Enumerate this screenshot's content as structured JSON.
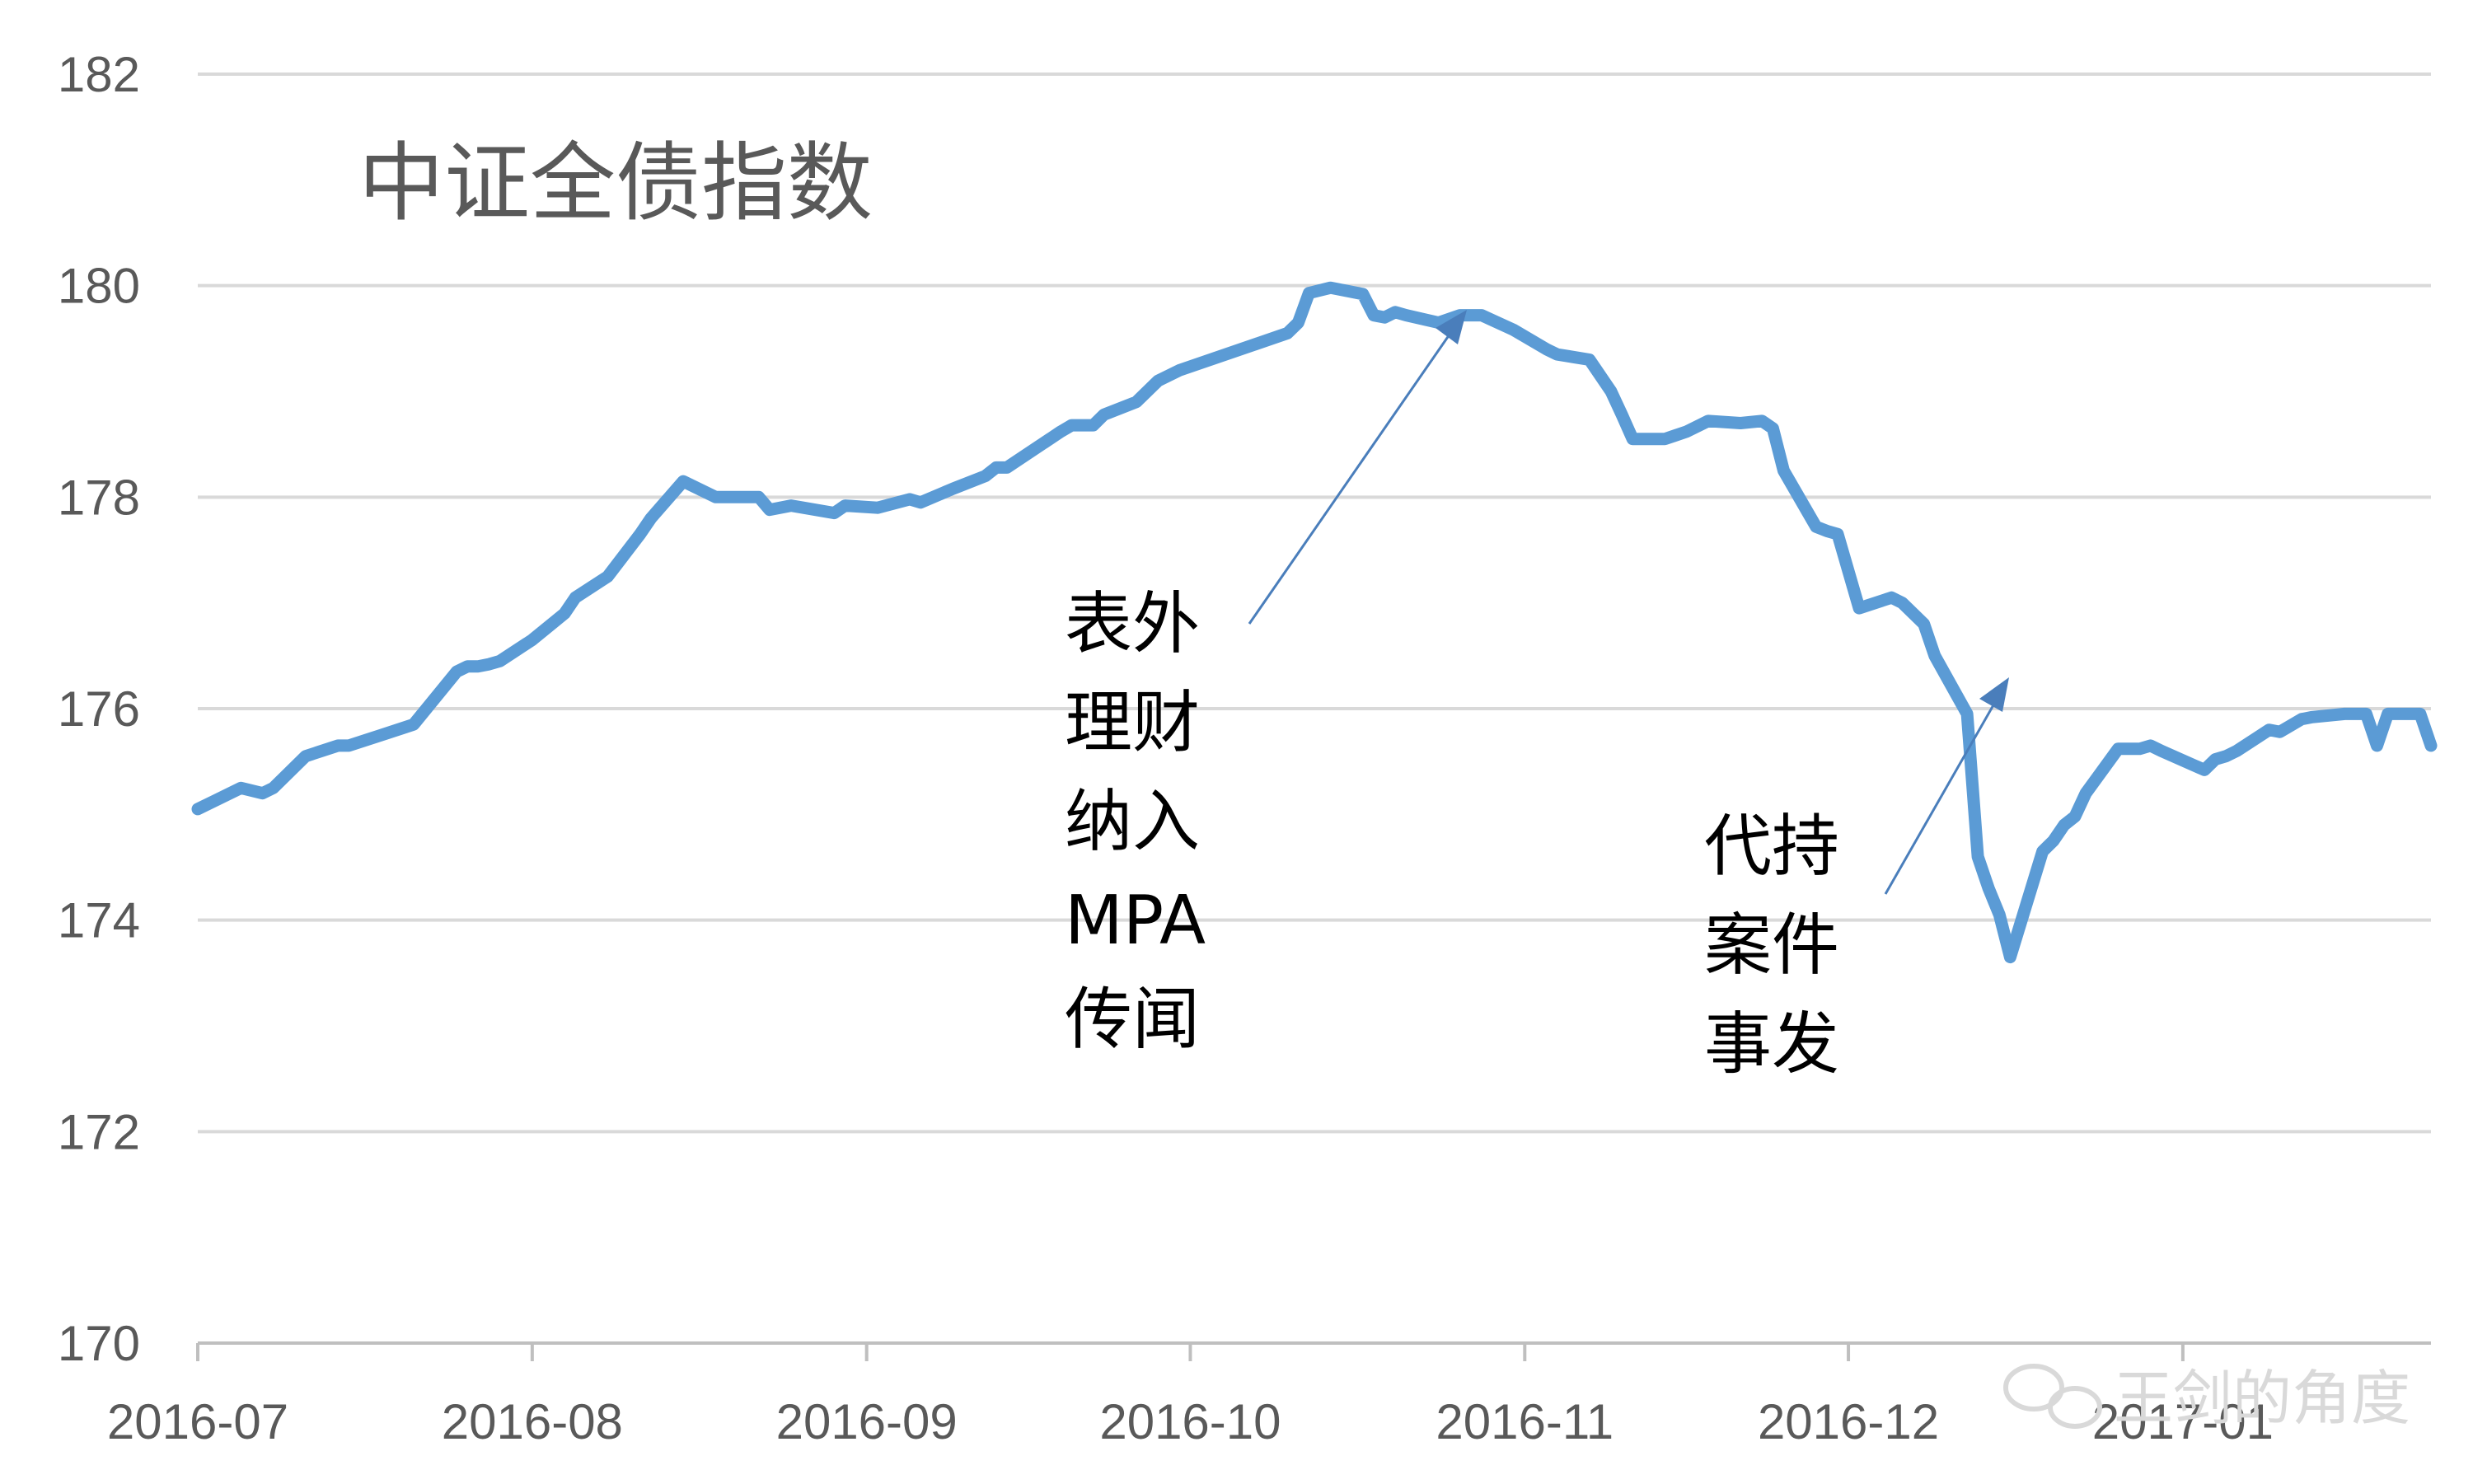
{
  "chart_data": {
    "type": "line",
    "title": "中证全债指数",
    "xlabel": "",
    "ylabel": "",
    "ylim": [
      170,
      182
    ],
    "yticks": [
      170,
      172,
      174,
      176,
      178,
      180,
      182
    ],
    "x_tick_labels": [
      "2016-07",
      "2016-08",
      "2016-09",
      "2016-10",
      "2016-11",
      "2016-12",
      "2017-01"
    ],
    "grid": true,
    "legend": "none",
    "line_color": "#5b9bd5",
    "series": [
      {
        "name": "",
        "x": [
          "2016-07-01",
          "2016-07-05",
          "2016-07-07",
          "2016-07-08",
          "2016-07-11",
          "2016-07-14",
          "2016-07-15",
          "2016-07-18",
          "2016-07-21",
          "2016-07-25",
          "2016-07-26",
          "2016-07-27",
          "2016-07-28",
          "2016-07-29",
          "2016-08-01",
          "2016-08-04",
          "2016-08-05",
          "2016-08-08",
          "2016-08-11",
          "2016-08-12",
          "2016-08-15",
          "2016-08-18",
          "2016-08-19",
          "2016-08-22",
          "2016-08-23",
          "2016-08-25",
          "2016-08-29",
          "2016-08-30",
          "2016-09-02",
          "2016-09-05",
          "2016-09-06",
          "2016-09-09",
          "2016-09-12",
          "2016-09-13",
          "2016-09-14",
          "2016-09-19",
          "2016-09-20",
          "2016-09-22",
          "2016-09-23",
          "2016-09-26",
          "2016-09-27",
          "2016-09-28",
          "2016-09-30",
          "2016-10-10",
          "2016-10-11",
          "2016-10-12",
          "2016-10-14",
          "2016-10-17",
          "2016-10-18",
          "2016-10-19",
          "2016-10-20",
          "2016-10-21",
          "2016-10-24",
          "2016-10-26",
          "2016-10-28",
          "2016-10-31",
          "2016-11-03",
          "2016-11-04",
          "2016-11-07",
          "2016-11-09",
          "2016-11-10",
          "2016-11-11",
          "2016-11-14",
          "2016-11-16",
          "2016-11-18",
          "2016-11-21",
          "2016-11-23",
          "2016-11-24",
          "2016-11-25",
          "2016-11-28",
          "2016-11-29",
          "2016-11-30",
          "2016-12-02",
          "2016-12-05",
          "2016-12-06",
          "2016-12-07",
          "2016-12-08",
          "2016-12-09",
          "2016-12-12",
          "2016-12-13",
          "2016-12-14",
          "2016-12-15",
          "2016-12-16",
          "2016-12-19",
          "2016-12-20",
          "2016-12-21",
          "2016-12-22",
          "2016-12-23",
          "2016-12-26",
          "2016-12-27",
          "2016-12-28",
          "2016-12-29",
          "2016-12-30",
          "2017-01-03",
          "2017-01-04",
          "2017-01-05",
          "2017-01-06",
          "2017-01-09",
          "2017-01-10",
          "2017-01-12",
          "2017-01-13",
          "2017-01-16",
          "2017-01-18",
          "2017-01-19",
          "2017-01-20",
          "2017-01-23",
          "2017-01-24"
        ],
        "values": [
          175.05,
          175.25,
          175.2,
          175.25,
          175.55,
          175.65,
          175.65,
          175.75,
          175.85,
          176.35,
          176.4,
          176.4,
          176.42,
          176.45,
          176.65,
          176.9,
          177.05,
          177.25,
          177.65,
          177.8,
          178.15,
          178.0,
          178.0,
          178.0,
          177.88,
          177.92,
          177.85,
          177.92,
          177.9,
          177.98,
          177.95,
          178.08,
          178.2,
          178.28,
          178.28,
          178.62,
          178.68,
          178.68,
          178.78,
          178.9,
          179.0,
          179.1,
          179.2,
          179.55,
          179.65,
          179.93,
          179.98,
          179.92,
          179.72,
          179.7,
          179.75,
          179.72,
          179.65,
          179.72,
          179.72,
          179.58,
          179.4,
          179.35,
          179.3,
          179.0,
          178.78,
          178.55,
          178.55,
          178.62,
          178.72,
          178.7,
          178.72,
          178.65,
          178.25,
          177.72,
          177.68,
          177.65,
          176.95,
          177.05,
          177.0,
          176.9,
          176.8,
          176.5,
          175.95,
          174.6,
          174.3,
          174.05,
          173.65,
          174.65,
          174.75,
          174.9,
          174.98,
          175.2,
          175.62,
          175.62,
          175.62,
          175.65,
          175.6,
          175.42,
          175.52,
          175.55,
          175.6,
          175.8,
          175.78,
          175.9,
          175.92,
          175.95,
          175.95,
          175.65,
          175.95,
          175.95,
          175.65
        ]
      }
    ],
    "annotations": [
      {
        "lines": [
          "表外",
          "理财",
          "纳入",
          "MPA",
          "传闻"
        ],
        "points_to": "2016-10-17"
      },
      {
        "lines": [
          "代持",
          "案件",
          "事发"
        ],
        "points_to": "2016-12-14"
      }
    ]
  },
  "watermark": "王剑的角度"
}
